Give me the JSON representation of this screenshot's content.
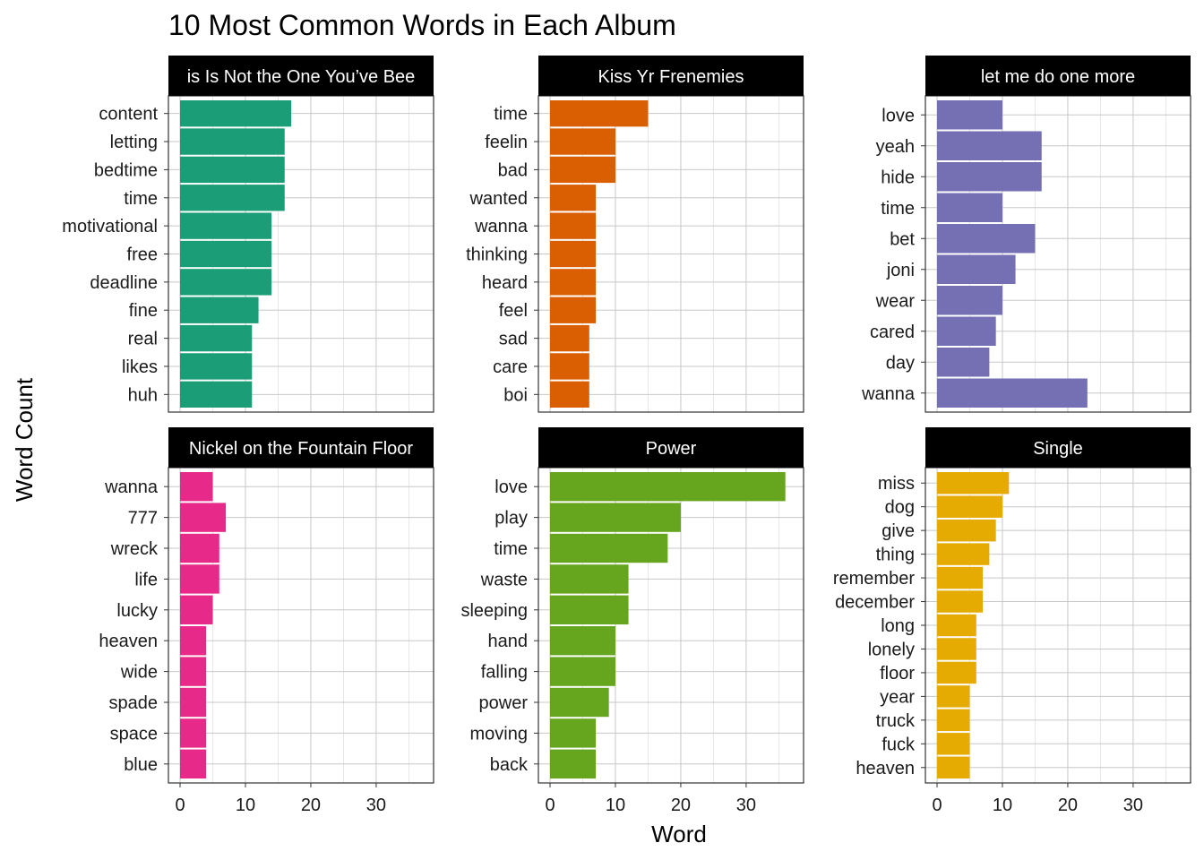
{
  "chart_data": {
    "type": "bar",
    "title": "10 Most Common Words in Each Album",
    "xlabel": "Word",
    "ylabel": "Word Count",
    "xlim": [
      0,
      37
    ],
    "x_ticks": [
      0,
      10,
      20,
      30
    ],
    "grid": true,
    "panels": [
      {
        "album": "This Is Not the One You’ve Been Looking For",
        "strip_label": "is Is Not the One You’ve Bee",
        "color": "#1B9E77",
        "categories": [
          "content",
          "letting",
          "bedtime",
          "time",
          "motivational",
          "free",
          "deadline",
          "fine",
          "real",
          "likes",
          "huh"
        ],
        "values": [
          17,
          16,
          16,
          16,
          14,
          14,
          14,
          12,
          11,
          11,
          11
        ]
      },
      {
        "album": "Kiss Yr Frenemies",
        "strip_label": "Kiss Yr Frenemies",
        "color": "#D95F02",
        "categories": [
          "time",
          "feelin",
          "bad",
          "wanted",
          "wanna",
          "thinking",
          "heard",
          "feel",
          "sad",
          "care",
          "boi"
        ],
        "values": [
          15,
          10,
          10,
          7,
          7,
          7,
          7,
          7,
          6,
          6,
          6
        ]
      },
      {
        "album": "let me do one more",
        "strip_label": "let me do one more",
        "color": "#7570B3",
        "categories": [
          "love",
          "yeah",
          "hide",
          "time",
          "bet",
          "joni",
          "wear",
          "cared",
          "day",
          "wanna"
        ],
        "values": [
          10,
          16,
          16,
          10,
          15,
          12,
          10,
          9,
          8,
          23
        ]
      },
      {
        "album": "Nickel on the Fountain Floor",
        "strip_label": "Nickel on the Fountain Floor",
        "color": "#E7298A",
        "categories": [
          "wanna",
          "777",
          "wreck",
          "life",
          "lucky",
          "heaven",
          "wide",
          "spade",
          "space",
          "blue"
        ],
        "values": [
          5,
          7,
          6,
          6,
          5,
          4,
          4,
          4,
          4,
          4
        ]
      },
      {
        "album": "Power",
        "strip_label": "Power",
        "color": "#66A61E",
        "categories": [
          "love",
          "play",
          "time",
          "waste",
          "sleeping",
          "hand",
          "falling",
          "power",
          "moving",
          "back"
        ],
        "values": [
          36,
          20,
          18,
          12,
          12,
          10,
          10,
          9,
          7,
          7
        ]
      },
      {
        "album": "Single",
        "strip_label": "Single",
        "color": "#E6AB02",
        "categories": [
          "miss",
          "dog",
          "give",
          "thing",
          "remember",
          "december",
          "long",
          "lonely",
          "floor",
          "year",
          "truck",
          "fuck",
          "heaven"
        ],
        "values": [
          11,
          10,
          9,
          8,
          7,
          7,
          6,
          6,
          6,
          5,
          5,
          5,
          5
        ]
      }
    ]
  }
}
